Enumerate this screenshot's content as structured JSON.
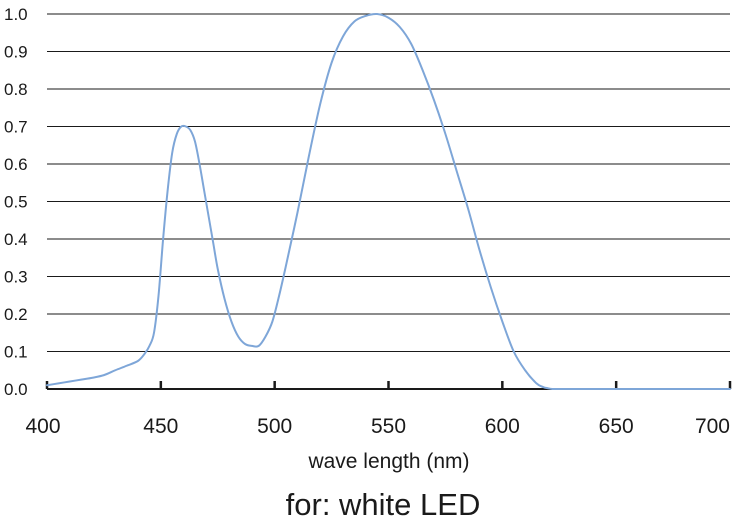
{
  "chart_data": {
    "type": "line",
    "title": "for: white LED",
    "xlabel": "wave length (nm)",
    "ylabel": "",
    "xlim": [
      400,
      700
    ],
    "ylim": [
      0.0,
      1.0
    ],
    "x_ticks": [
      "400",
      "450",
      "500",
      "550",
      "600",
      "650",
      "700"
    ],
    "y_ticks": [
      "0.0",
      "0.1",
      "0.2",
      "0.3",
      "0.4",
      "0.5",
      "0.6",
      "0.7",
      "0.8",
      "0.9",
      "1.0"
    ],
    "grid": true,
    "legend": "none",
    "line_color": "#7ea6d8",
    "series": [
      {
        "x": [
          400,
          405,
          410,
          415,
          420,
          425,
          430,
          435,
          440,
          443,
          445,
          447,
          449,
          451,
          453,
          455,
          457,
          459,
          461,
          463,
          465,
          467,
          469,
          471,
          473,
          475,
          478,
          481,
          484,
          487,
          490,
          493,
          496,
          499,
          502,
          505,
          510,
          515,
          520,
          525,
          530,
          535,
          540,
          545,
          550,
          555,
          560,
          565,
          570,
          575,
          580,
          585,
          590,
          595,
          600,
          605,
          610,
          615,
          618,
          620,
          622,
          625,
          630,
          640,
          650,
          660,
          670,
          680,
          690,
          700
        ],
        "y": [
          0.01,
          0.015,
          0.02,
          0.025,
          0.03,
          0.037,
          0.05,
          0.062,
          0.075,
          0.095,
          0.115,
          0.15,
          0.25,
          0.4,
          0.53,
          0.63,
          0.68,
          0.7,
          0.7,
          0.69,
          0.66,
          0.6,
          0.53,
          0.46,
          0.39,
          0.32,
          0.24,
          0.18,
          0.14,
          0.12,
          0.115,
          0.115,
          0.14,
          0.18,
          0.25,
          0.33,
          0.47,
          0.62,
          0.76,
          0.87,
          0.94,
          0.98,
          0.995,
          1.0,
          0.99,
          0.965,
          0.92,
          0.85,
          0.77,
          0.68,
          0.58,
          0.48,
          0.37,
          0.27,
          0.18,
          0.1,
          0.05,
          0.015,
          0.005,
          0.002,
          0.0,
          0.0,
          0.0,
          0.0,
          0.0,
          0.0,
          0.0,
          0.0,
          0.0,
          0.0
        ]
      }
    ]
  }
}
